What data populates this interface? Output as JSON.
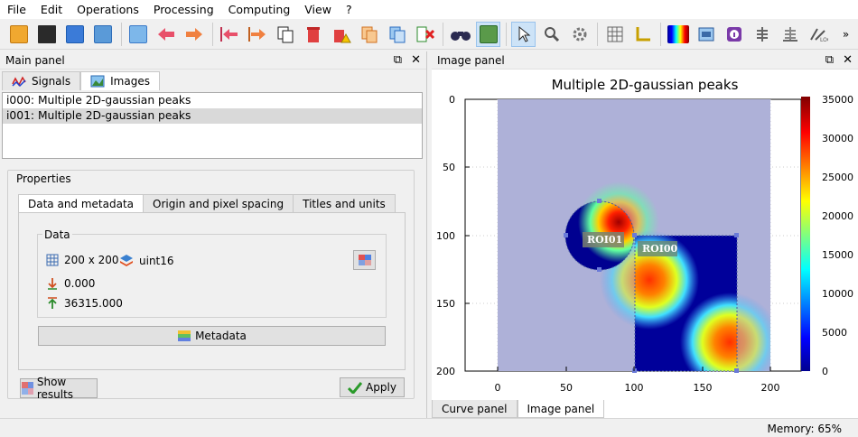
{
  "menubar": {
    "items": [
      "File",
      "Edit",
      "Operations",
      "Processing",
      "Computing",
      "View",
      "?"
    ]
  },
  "toolbar": {
    "overflow": "»"
  },
  "main_panel": {
    "title": "Main panel",
    "tabs": [
      {
        "label": "Signals"
      },
      {
        "label": "Images"
      }
    ],
    "objects": [
      "i000: Multiple 2D-gaussian peaks",
      "i001: Multiple 2D-gaussian peaks"
    ],
    "properties_label": "Properties",
    "prop_tabs": [
      "Data and metadata",
      "Origin and pixel spacing",
      "Titles and units"
    ],
    "data_label": "Data",
    "size": "200 x 200",
    "dtype": "uint16",
    "min_value": "0.000",
    "max_value": "36315.000",
    "metadata_button": "Metadata",
    "show_results_button": "Show results",
    "apply_button": "Apply"
  },
  "image_panel": {
    "title": "Image panel",
    "plot_title": "Multiple 2D-gaussian peaks",
    "x_ticks": [
      "0",
      "50",
      "100",
      "150",
      "200"
    ],
    "y_ticks": [
      "0",
      "50",
      "100",
      "150",
      "200"
    ],
    "colorbar_ticks": [
      "35000",
      "30000",
      "25000",
      "20000",
      "15000",
      "10000",
      "5000",
      "0"
    ],
    "roi_labels": [
      "ROI01",
      "ROI00"
    ],
    "colormap": "jet"
  },
  "bottom_tabs": [
    "Curve panel",
    "Image panel"
  ],
  "status": {
    "memory": "Memory: 65%"
  }
}
